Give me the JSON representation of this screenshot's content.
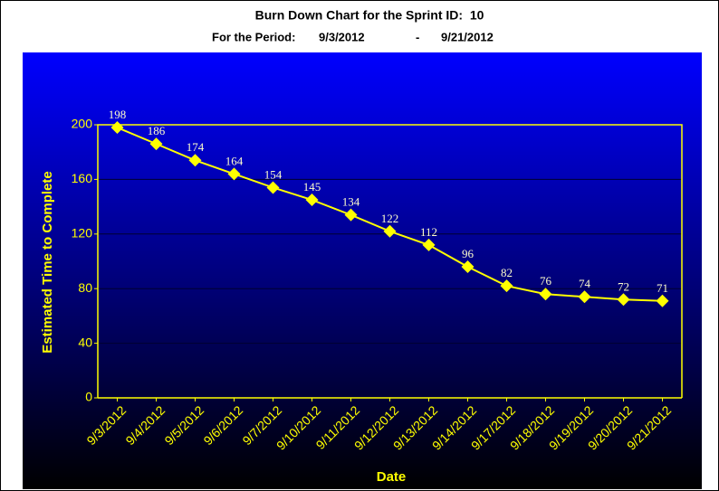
{
  "chart_data": {
    "type": "line",
    "title": "Burn Down Chart for the Sprint ID:  10",
    "period_label": "For the Period:",
    "period_start": "9/3/2012",
    "period_separator": "-",
    "period_end": "9/21/2012",
    "x_label": "Date",
    "y_label": "Estimated Time to Complete",
    "categories": [
      "9/3/2012",
      "9/4/2012",
      "9/5/2012",
      "9/6/2012",
      "9/7/2012",
      "9/10/2012",
      "9/11/2012",
      "9/12/2012",
      "9/13/2012",
      "9/14/2012",
      "9/17/2012",
      "9/18/2012",
      "9/19/2012",
      "9/20/2012",
      "9/21/2012"
    ],
    "values": [
      198,
      186,
      174,
      164,
      154,
      145,
      134,
      122,
      112,
      96,
      82,
      76,
      74,
      72,
      71
    ],
    "color": "#ffff00",
    "ylim": [
      0,
      200
    ],
    "yticks": [
      0,
      40,
      80,
      120,
      160,
      200
    ],
    "grid": true
  }
}
